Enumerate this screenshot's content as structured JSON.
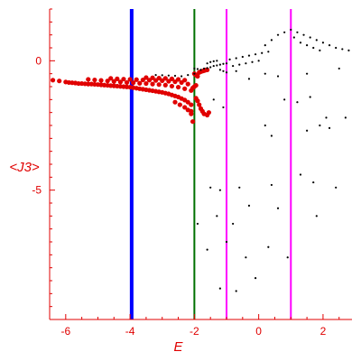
{
  "chart_data": {
    "type": "scatter",
    "title": "",
    "xlabel": "E",
    "ylabel": "<J3>",
    "xlim": [
      -6.5,
      2.9
    ],
    "ylim": [
      -10,
      2.0
    ],
    "x_ticks": [
      {
        "value": -6,
        "label": "-6"
      },
      {
        "value": -4,
        "label": "-4"
      },
      {
        "value": -2,
        "label": "-2"
      },
      {
        "value": 0,
        "label": "0"
      },
      {
        "value": 2,
        "label": "2"
      }
    ],
    "y_ticks": [
      {
        "value": 0,
        "label": "0"
      },
      {
        "value": -5,
        "label": "-5"
      }
    ],
    "vertical_lines": [
      {
        "x": -3.95,
        "color": "#0000ff"
      },
      {
        "x": -2.0,
        "color": "#007000"
      },
      {
        "x": -1.0,
        "color": "#ff00ff"
      },
      {
        "x": 1.0,
        "color": "#ff00ff"
      }
    ],
    "colors": {
      "axis": "#e00000",
      "red_points": "#e00000",
      "black_points": "#000000"
    },
    "series": [
      {
        "color": "#e00000",
        "points": [
          [
            -6.4,
            -0.75
          ],
          [
            -6.2,
            -0.78
          ],
          [
            -6.0,
            -0.82
          ],
          [
            -5.9,
            -0.84
          ],
          [
            -5.8,
            -0.85
          ],
          [
            -5.7,
            -0.86
          ],
          [
            -5.6,
            -0.88
          ],
          [
            -5.5,
            -0.88
          ],
          [
            -5.4,
            -0.89
          ],
          [
            -5.3,
            -0.9
          ],
          [
            -5.2,
            -0.9
          ],
          [
            -5.1,
            -0.91
          ],
          [
            -5.0,
            -0.92
          ],
          [
            -4.9,
            -0.93
          ],
          [
            -4.8,
            -0.94
          ],
          [
            -4.7,
            -0.95
          ],
          [
            -4.6,
            -0.96
          ],
          [
            -4.5,
            -0.97
          ],
          [
            -4.4,
            -0.98
          ],
          [
            -4.3,
            -0.99
          ],
          [
            -4.2,
            -1.0
          ],
          [
            -4.1,
            -1.01
          ],
          [
            -4.0,
            -1.02
          ],
          [
            -3.9,
            -1.04
          ],
          [
            -3.8,
            -1.06
          ],
          [
            -3.7,
            -1.08
          ],
          [
            -3.6,
            -1.1
          ],
          [
            -3.5,
            -1.12
          ],
          [
            -3.4,
            -1.14
          ],
          [
            -3.3,
            -1.16
          ],
          [
            -3.2,
            -1.18
          ],
          [
            -3.1,
            -1.2
          ],
          [
            -3.0,
            -1.22
          ],
          [
            -2.9,
            -1.25
          ],
          [
            -2.8,
            -1.28
          ],
          [
            -2.7,
            -1.32
          ],
          [
            -2.6,
            -1.36
          ],
          [
            -2.5,
            -1.4
          ],
          [
            -2.4,
            -1.46
          ],
          [
            -2.3,
            -1.52
          ],
          [
            -2.2,
            -1.6
          ],
          [
            -2.1,
            -1.7
          ],
          [
            -5.3,
            -0.72
          ],
          [
            -5.1,
            -0.74
          ],
          [
            -4.9,
            -0.76
          ],
          [
            -4.7,
            -0.78
          ],
          [
            -4.5,
            -0.8
          ],
          [
            -4.3,
            -0.82
          ],
          [
            -4.1,
            -0.84
          ],
          [
            -3.9,
            -0.85
          ],
          [
            -3.7,
            -0.87
          ],
          [
            -3.5,
            -0.88
          ],
          [
            -3.3,
            -0.9
          ],
          [
            -3.1,
            -0.92
          ],
          [
            -2.9,
            -0.94
          ],
          [
            -2.7,
            -0.98
          ],
          [
            -2.5,
            -1.02
          ],
          [
            -2.3,
            -1.08
          ],
          [
            -2.1,
            -1.15
          ],
          [
            -4.6,
            -0.68
          ],
          [
            -4.4,
            -0.7
          ],
          [
            -4.2,
            -0.71
          ],
          [
            -4.0,
            -0.72
          ],
          [
            -3.8,
            -0.73
          ],
          [
            -3.6,
            -0.74
          ],
          [
            -3.4,
            -0.75
          ],
          [
            -3.2,
            -0.76
          ],
          [
            -3.0,
            -0.77
          ],
          [
            -2.8,
            -0.79
          ],
          [
            -2.6,
            -0.81
          ],
          [
            -2.4,
            -0.84
          ],
          [
            -2.2,
            -0.9
          ],
          [
            -3.5,
            -0.65
          ],
          [
            -3.3,
            -0.66
          ],
          [
            -3.1,
            -0.67
          ],
          [
            -2.9,
            -0.68
          ],
          [
            -2.7,
            -0.7
          ],
          [
            -2.5,
            -0.72
          ],
          [
            -2.3,
            -0.75
          ],
          [
            -2.6,
            -1.6
          ],
          [
            -2.45,
            -1.7
          ],
          [
            -2.3,
            -1.8
          ],
          [
            -2.2,
            -1.9
          ],
          [
            -2.1,
            -2.05
          ],
          [
            -2.1,
            -1.95
          ],
          [
            -2.05,
            -2.35
          ],
          [
            -2.0,
            -0.5
          ],
          [
            -1.95,
            -0.55
          ],
          [
            -1.9,
            -0.6
          ],
          [
            -1.85,
            -0.45
          ],
          [
            -1.8,
            -0.42
          ],
          [
            -1.75,
            -0.4
          ],
          [
            -1.7,
            -0.38
          ],
          [
            -1.65,
            -0.36
          ],
          [
            -1.6,
            -0.35
          ],
          [
            -1.95,
            -1.45
          ],
          [
            -1.9,
            -1.55
          ],
          [
            -1.85,
            -1.7
          ],
          [
            -1.8,
            -1.85
          ],
          [
            -1.75,
            -1.95
          ],
          [
            -1.7,
            -2.05
          ],
          [
            -1.6,
            -2.1
          ],
          [
            -1.55,
            -2.0
          ],
          [
            -2.0,
            -1.0
          ],
          [
            -1.95,
            -0.95
          ],
          [
            -2.05,
            -1.05
          ]
        ]
      },
      {
        "color": "#000000",
        "points": [
          [
            -3.2,
            -0.55
          ],
          [
            -3.0,
            -0.56
          ],
          [
            -2.8,
            -0.57
          ],
          [
            -2.6,
            -0.58
          ],
          [
            -2.4,
            -0.6
          ],
          [
            -2.2,
            -0.55
          ],
          [
            -2.0,
            -0.5
          ],
          [
            -2.0,
            -0.3
          ],
          [
            -1.9,
            -0.32
          ],
          [
            -1.8,
            -0.35
          ],
          [
            -1.7,
            -0.3
          ],
          [
            -1.6,
            -0.28
          ],
          [
            -1.5,
            -0.25
          ],
          [
            -1.4,
            -0.2
          ],
          [
            -1.3,
            -0.18
          ],
          [
            -1.2,
            -0.15
          ],
          [
            -1.1,
            -0.12
          ],
          [
            -1.0,
            -0.1
          ],
          [
            -1.6,
            -0.1
          ],
          [
            -1.5,
            -0.05
          ],
          [
            -1.4,
            -0.02
          ],
          [
            -1.3,
            0.0
          ],
          [
            -1.2,
            -0.35
          ],
          [
            -1.1,
            -0.4
          ],
          [
            -1.0,
            -0.45
          ],
          [
            -0.8,
            -0.2
          ],
          [
            -0.6,
            -0.15
          ],
          [
            -0.4,
            -0.1
          ],
          [
            -0.2,
            -0.05
          ],
          [
            0.0,
            0.0
          ],
          [
            -0.9,
            0.05
          ],
          [
            -0.7,
            0.1
          ],
          [
            -0.5,
            0.15
          ],
          [
            -0.3,
            0.2
          ],
          [
            -0.1,
            0.25
          ],
          [
            0.1,
            0.3
          ],
          [
            0.3,
            0.35
          ],
          [
            0.2,
            0.6
          ],
          [
            0.4,
            0.8
          ],
          [
            0.6,
            1.0
          ],
          [
            0.8,
            1.1
          ],
          [
            1.0,
            1.2
          ],
          [
            1.2,
            1.1
          ],
          [
            1.4,
            1.0
          ],
          [
            1.6,
            0.9
          ],
          [
            1.8,
            0.8
          ],
          [
            2.0,
            0.7
          ],
          [
            2.2,
            0.6
          ],
          [
            2.4,
            0.5
          ],
          [
            2.6,
            0.45
          ],
          [
            2.8,
            0.4
          ],
          [
            1.1,
            0.9
          ],
          [
            1.3,
            0.7
          ],
          [
            1.5,
            0.6
          ],
          [
            1.7,
            0.5
          ],
          [
            1.9,
            0.4
          ],
          [
            -0.7,
            -0.4
          ],
          [
            -0.3,
            -0.7
          ],
          [
            0.2,
            -0.5
          ],
          [
            0.6,
            -0.6
          ],
          [
            1.5,
            -0.5
          ],
          [
            2.5,
            -0.3
          ],
          [
            -1.4,
            -1.5
          ],
          [
            -1.1,
            -1.8
          ],
          [
            0.2,
            -2.5
          ],
          [
            0.4,
            -2.9
          ],
          [
            0.8,
            -1.5
          ],
          [
            1.2,
            -1.6
          ],
          [
            1.6,
            -1.4
          ],
          [
            2.1,
            -2.2
          ],
          [
            2.2,
            -2.6
          ],
          [
            2.7,
            -2.2
          ],
          [
            1.5,
            -2.7
          ],
          [
            1.9,
            -2.5
          ],
          [
            -1.5,
            -4.9
          ],
          [
            -1.2,
            -5.0
          ],
          [
            -0.6,
            -4.9
          ],
          [
            0.4,
            -4.8
          ],
          [
            1.3,
            -4.4
          ],
          [
            1.7,
            -4.7
          ],
          [
            2.4,
            -4.9
          ],
          [
            -1.3,
            -6.0
          ],
          [
            -1.9,
            -6.3
          ],
          [
            -0.8,
            -6.3
          ],
          [
            -0.3,
            -5.6
          ],
          [
            0.6,
            -5.7
          ],
          [
            1.8,
            -6.0
          ],
          [
            -1.6,
            -7.3
          ],
          [
            -1.0,
            -7.0
          ],
          [
            -0.4,
            -7.6
          ],
          [
            0.3,
            -7.2
          ],
          [
            -1.2,
            -8.8
          ],
          [
            -0.1,
            -8.4
          ],
          [
            0.9,
            -7.6
          ],
          [
            -0.7,
            -8.9
          ]
        ]
      }
    ]
  }
}
